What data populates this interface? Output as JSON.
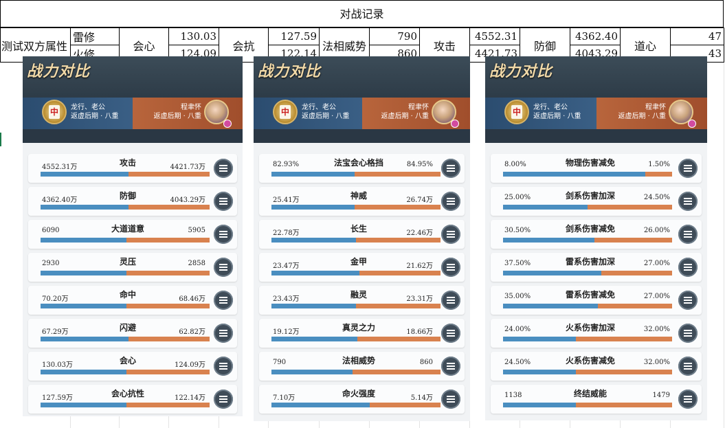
{
  "sheet": {
    "title": "对战记录",
    "row_label": "测试双方属性",
    "player_a": "雷修",
    "player_b": "火修",
    "attrs": [
      {
        "name": "会心",
        "a": "130.03",
        "b": "124.09"
      },
      {
        "name": "会抗",
        "a": "127.59",
        "b": "122.14"
      },
      {
        "name": "法相威势",
        "a": "790",
        "b": "860"
      },
      {
        "name": "攻击",
        "a": "4552.31",
        "b": "4421.73"
      },
      {
        "name": "防御",
        "a": "4362.40",
        "b": "4043.29"
      },
      {
        "name": "道心",
        "a": "47",
        "b": "43"
      }
    ]
  },
  "panel_header": {
    "title": "战力对比",
    "left_player": {
      "name": "龙行、老公",
      "realm": "返虚后期 · 八重"
    },
    "right_player": {
      "name": "程聿怀",
      "realm": "返虚后期 · 八重"
    },
    "badge_char": "中"
  },
  "panels": [
    {
      "rows": [
        {
          "name": "攻击",
          "left": "4552.31万",
          "right": "4421.73万",
          "ratio": 0.52
        },
        {
          "name": "防御",
          "left": "4362.40万",
          "right": "4043.29万",
          "ratio": 0.52
        },
        {
          "name": "大道道意",
          "left": "6090",
          "right": "5905",
          "ratio": 0.51
        },
        {
          "name": "灵压",
          "left": "2930",
          "right": "2858",
          "ratio": 0.51
        },
        {
          "name": "命中",
          "left": "70.20万",
          "right": "68.46万",
          "ratio": 0.51
        },
        {
          "name": "闪避",
          "left": "67.29万",
          "right": "62.82万",
          "ratio": 0.52
        },
        {
          "name": "会心",
          "left": "130.03万",
          "right": "124.09万",
          "ratio": 0.51
        },
        {
          "name": "会心抗性",
          "left": "127.59万",
          "right": "122.14万",
          "ratio": 0.51
        }
      ]
    },
    {
      "rows": [
        {
          "name": "法宝会心格挡",
          "left": "82.93%",
          "right": "84.95%",
          "ratio": 0.49
        },
        {
          "name": "神威",
          "left": "25.41万",
          "right": "26.74万",
          "ratio": 0.49
        },
        {
          "name": "长生",
          "left": "22.78万",
          "right": "22.46万",
          "ratio": 0.5
        },
        {
          "name": "金甲",
          "left": "23.47万",
          "right": "21.62万",
          "ratio": 0.52
        },
        {
          "name": "融灵",
          "left": "23.43万",
          "right": "23.31万",
          "ratio": 0.5
        },
        {
          "name": "真灵之力",
          "left": "19.12万",
          "right": "18.66万",
          "ratio": 0.51
        },
        {
          "name": "法相威势",
          "left": "790",
          "right": "860",
          "ratio": 0.48
        },
        {
          "name": "命火强度",
          "left": "7.10万",
          "right": "5.14万",
          "ratio": 0.58
        }
      ]
    },
    {
      "rows": [
        {
          "name": "物理伤害减免",
          "left": "8.00%",
          "right": "1.50%",
          "ratio": 0.84
        },
        {
          "name": "剑系伤害加深",
          "left": "25.00%",
          "right": "24.50%",
          "ratio": 0.5
        },
        {
          "name": "剑系伤害减免",
          "left": "30.50%",
          "right": "26.00%",
          "ratio": 0.54
        },
        {
          "name": "雷系伤害加深",
          "left": "37.50%",
          "right": "27.00%",
          "ratio": 0.58
        },
        {
          "name": "雷系伤害减免",
          "left": "35.00%",
          "right": "27.00%",
          "ratio": 0.56
        },
        {
          "name": "火系伤害加深",
          "left": "24.00%",
          "right": "32.00%",
          "ratio": 0.43
        },
        {
          "name": "火系伤害减免",
          "left": "24.50%",
          "right": "32.00%",
          "ratio": 0.43
        },
        {
          "name": "终结威能",
          "left": "1138",
          "right": "1479",
          "ratio": 0.43
        }
      ]
    }
  ],
  "colors": {
    "left_bar": "#4a8ec0",
    "right_bar": "#d9824f"
  },
  "icons": {
    "row_button": "menu-list-icon",
    "left_badge": "mahjong-tile-icon",
    "right_avatar": "character-portrait-icon"
  }
}
